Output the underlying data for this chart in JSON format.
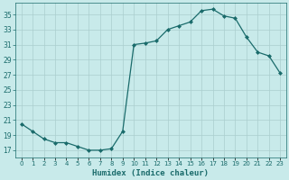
{
  "x": [
    0,
    1,
    2,
    3,
    4,
    5,
    6,
    7,
    8,
    9,
    10,
    11,
    12,
    13,
    14,
    15,
    16,
    17,
    18,
    19,
    20,
    21,
    22,
    23
  ],
  "y": [
    20.5,
    19.5,
    18.5,
    18.0,
    18.0,
    17.5,
    17.0,
    17.0,
    17.2,
    19.5,
    31.0,
    31.2,
    31.5,
    33.0,
    33.5,
    34.0,
    35.5,
    35.7,
    34.8,
    34.5,
    32.0,
    30.0,
    29.5,
    27.2
  ],
  "line_color": "#1a6b6b",
  "marker": "D",
  "marker_size": 2.0,
  "bg_color": "#c8eaea",
  "grid_color": "#aacece",
  "tick_color": "#1a6b6b",
  "xlabel": "Humidex (Indice chaleur)",
  "xlabel_color": "#1a6b6b",
  "ylim": [
    16,
    36.5
  ],
  "xlim": [
    -0.5,
    23.5
  ],
  "yticks": [
    17,
    19,
    21,
    23,
    25,
    27,
    29,
    31,
    33,
    35
  ],
  "xtick_labels": [
    "0",
    "1",
    "2",
    "3",
    "4",
    "5",
    "6",
    "7",
    "8",
    "9",
    "10",
    "11",
    "12",
    "13",
    "14",
    "15",
    "16",
    "17",
    "18",
    "19",
    "20",
    "21",
    "22",
    "23"
  ]
}
